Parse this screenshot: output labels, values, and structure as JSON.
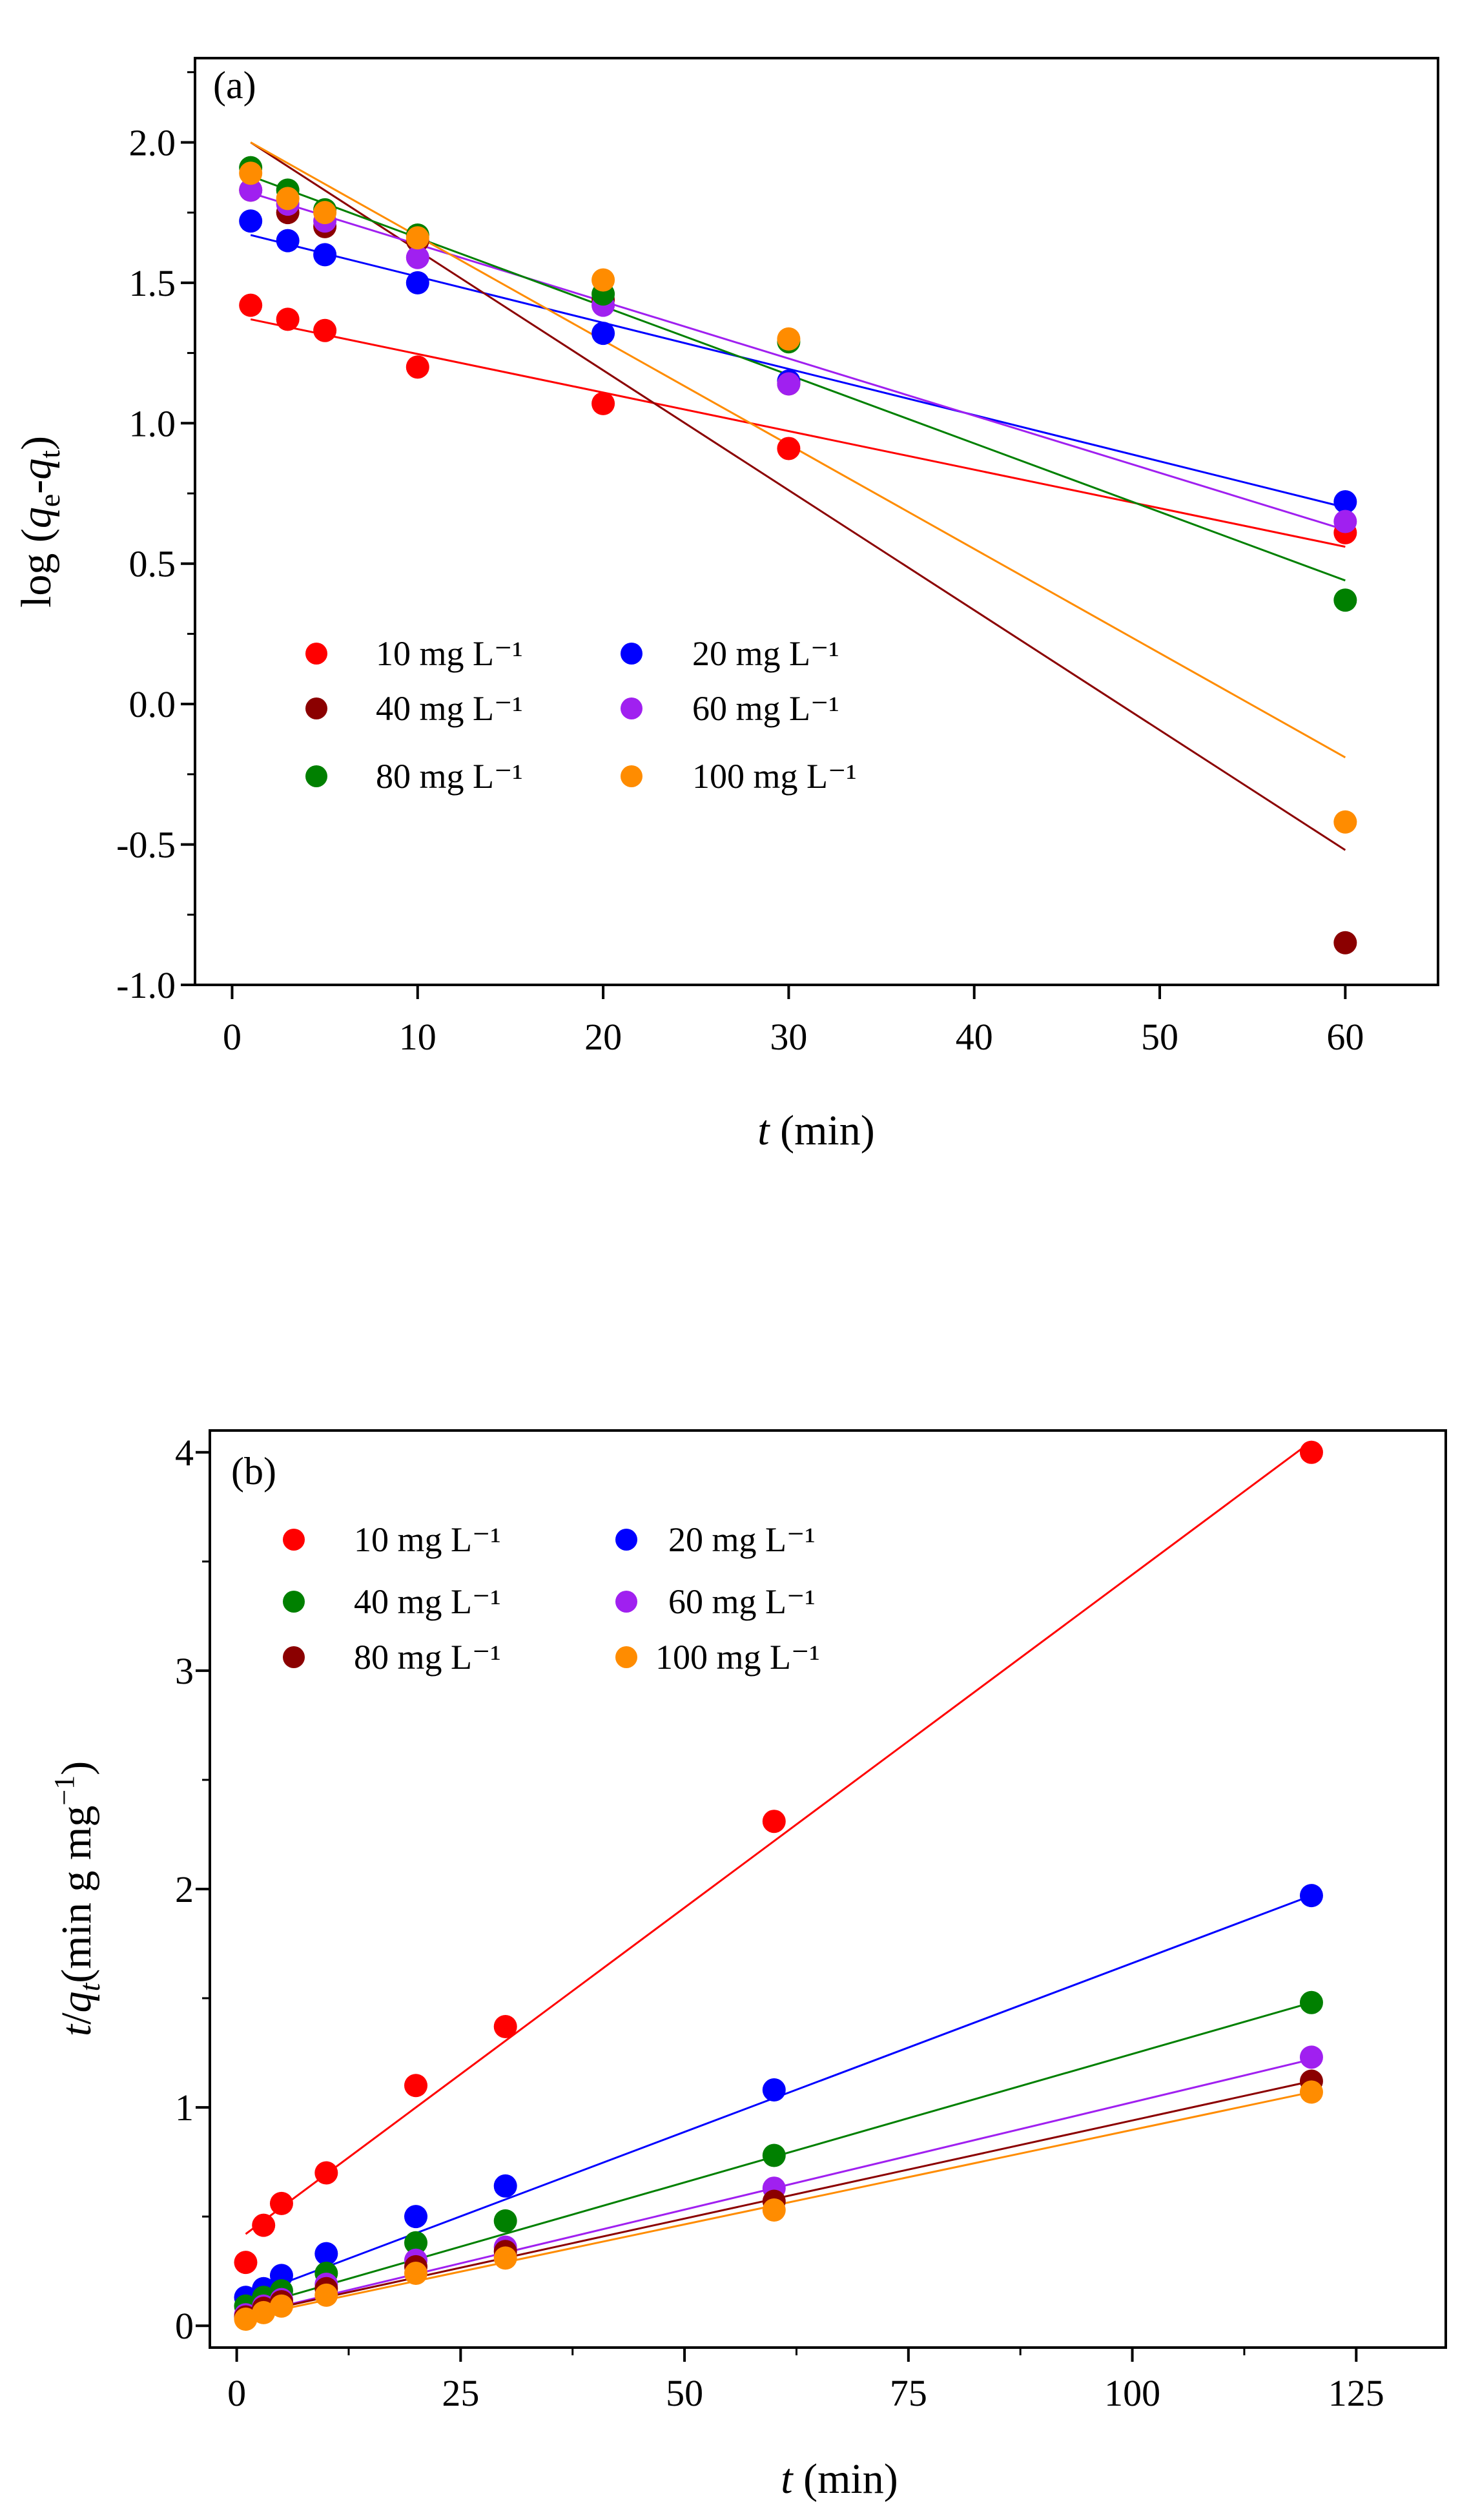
{
  "chart_data": [
    {
      "type": "scatter",
      "panel_label": "(a)",
      "x_label": "t",
      "x_label_unit": " (min)",
      "y_label": {
        "prefix": "log (",
        "q1": "q",
        "sub1": "e",
        "minus": "-",
        "q2": "q",
        "sub2": "t",
        "suffix": ")"
      },
      "xlim": [
        -2,
        65
      ],
      "ylim": [
        -1.0,
        2.3
      ],
      "x_ticks": [
        0,
        10,
        20,
        30,
        40,
        50,
        60
      ],
      "x_tick_labels": [
        "0",
        "10",
        "20",
        "30",
        "40",
        "50",
        "60"
      ],
      "y_ticks": [
        -1.0,
        -0.5,
        0.0,
        0.5,
        1.0,
        1.5,
        2.0
      ],
      "y_tick_labels": [
        "-1.0",
        "-0.5",
        "0.0",
        "0.5",
        "1.0",
        "1.5",
        "2.0"
      ],
      "x": [
        1,
        3,
        5,
        10,
        20,
        30,
        60
      ],
      "legend_position": "lower-left",
      "legend_columns": 2,
      "series": [
        {
          "name": "10 mg L⁻¹",
          "color": "#ff0000",
          "values": [
            1.42,
            1.37,
            1.33,
            1.2,
            1.07,
            0.91,
            0.61
          ],
          "fit": [
            [
              1,
              1.37
            ],
            [
              60,
              0.56
            ]
          ]
        },
        {
          "name": "20 mg L⁻¹",
          "color": "#0000ff",
          "values": [
            1.72,
            1.65,
            1.6,
            1.5,
            1.32,
            1.15,
            0.72
          ],
          "fit": [
            [
              1,
              1.67
            ],
            [
              60,
              0.7
            ]
          ]
        },
        {
          "name": "40 mg L⁻¹",
          "color": "#8b0000",
          "values": [
            1.83,
            1.75,
            1.7,
            1.65,
            1.44,
            1.14,
            -0.85
          ],
          "fit": [
            [
              1,
              2.0
            ],
            [
              60,
              -0.52
            ]
          ]
        },
        {
          "name": "60 mg L⁻¹",
          "color": "#a020f0",
          "values": [
            1.83,
            1.78,
            1.72,
            1.59,
            1.42,
            1.14,
            0.65
          ],
          "fit": [
            [
              1,
              1.82
            ],
            [
              60,
              0.62
            ]
          ]
        },
        {
          "name": "80 mg L⁻¹",
          "color": "#008000",
          "values": [
            1.91,
            1.83,
            1.76,
            1.67,
            1.46,
            1.29,
            0.37
          ],
          "fit": [
            [
              1,
              1.88
            ],
            [
              60,
              0.44
            ]
          ]
        },
        {
          "name": "100 mg L⁻¹",
          "color": "#ff8c00",
          "values": [
            1.89,
            1.8,
            1.75,
            1.66,
            1.51,
            1.3,
            -0.42
          ],
          "fit": [
            [
              1,
              2.0
            ],
            [
              60,
              -0.19
            ]
          ]
        }
      ]
    },
    {
      "type": "scatter",
      "panel_label": "(b)",
      "x_label": "t",
      "x_label_unit": " (min)",
      "y_label": {
        "t": "t",
        "slash": "/",
        "q": "q",
        "sub": "t",
        "unit": "(min g mg",
        "sup": "−1",
        "close": ")"
      },
      "xlim": [
        -3,
        135
      ],
      "ylim": [
        -0.1,
        4.1
      ],
      "x_ticks": [
        0,
        25,
        50,
        75,
        100,
        125
      ],
      "x_tick_labels": [
        "0",
        "25",
        "50",
        "75",
        "100",
        "125"
      ],
      "y_ticks": [
        0,
        1,
        2,
        3,
        4
      ],
      "y_tick_labels": [
        "0",
        "1",
        "2",
        "3",
        "4"
      ],
      "x": [
        1,
        3,
        5,
        10,
        20,
        30,
        60,
        120
      ],
      "legend_position": "top-left",
      "legend_columns": 2,
      "series": [
        {
          "name": "10 mg L⁻¹",
          "color": "#ff0000",
          "values": [
            0.29,
            0.46,
            0.56,
            0.7,
            1.1,
            1.37,
            2.31,
            4.0
          ],
          "fit": [
            [
              1,
              0.42
            ],
            [
              120,
              4.05
            ]
          ]
        },
        {
          "name": "20 mg L⁻¹",
          "color": "#0000ff",
          "values": [
            0.13,
            0.17,
            0.23,
            0.33,
            0.5,
            0.64,
            1.08,
            1.97
          ],
          "fit": [
            [
              1,
              0.13
            ],
            [
              120,
              1.97
            ]
          ]
        },
        {
          "name": "40 mg L⁻¹",
          "color": "#008000",
          "values": [
            0.09,
            0.13,
            0.16,
            0.24,
            0.38,
            0.48,
            0.78,
            1.48
          ],
          "fit": [
            [
              1,
              0.08
            ],
            [
              120,
              1.48
            ]
          ]
        },
        {
          "name": "60 mg L⁻¹",
          "color": "#a020f0",
          "values": [
            0.05,
            0.09,
            0.12,
            0.19,
            0.3,
            0.36,
            0.63,
            1.23
          ],
          "fit": [
            [
              1,
              0.05
            ],
            [
              120,
              1.22
            ]
          ]
        },
        {
          "name": "80 mg L⁻¹",
          "color": "#8b0000",
          "values": [
            0.04,
            0.08,
            0.11,
            0.17,
            0.27,
            0.34,
            0.57,
            1.12
          ],
          "fit": [
            [
              1,
              0.05
            ],
            [
              120,
              1.12
            ]
          ]
        },
        {
          "name": "100 mg L⁻¹",
          "color": "#ff8c00",
          "values": [
            0.03,
            0.06,
            0.09,
            0.14,
            0.24,
            0.31,
            0.53,
            1.07
          ],
          "fit": [
            [
              1,
              0.04
            ],
            [
              120,
              1.07
            ]
          ]
        }
      ]
    }
  ]
}
